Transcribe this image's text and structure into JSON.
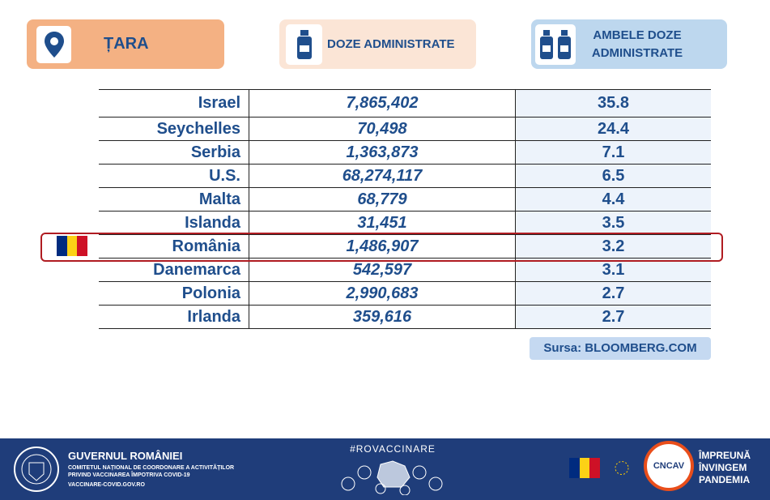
{
  "header": {
    "country": "ȚARA",
    "doses": "DOZE ADMINISTRATE",
    "both_doses": "AMBELE DOZE ADMINISTRATE"
  },
  "table": {
    "rows": [
      [
        "Israel",
        "7,865,402",
        35.8
      ],
      [
        "Seychelles",
        "70,498",
        24.4
      ],
      [
        "Serbia",
        "1,363,873",
        7.1
      ],
      [
        "U.S.",
        "68,274,117",
        6.5
      ],
      [
        "Malta",
        "68,779",
        4.4
      ],
      [
        "Islanda",
        "31,451",
        3.5
      ],
      [
        "România",
        "1,486,907",
        3.2
      ],
      [
        "Danemarca",
        "542,597",
        3.1
      ],
      [
        "Polonia",
        "2,990,683",
        2.7
      ],
      [
        "Irlanda",
        "359,616",
        2.7
      ]
    ]
  },
  "source": "Sursa: BLOOMBERG.COM",
  "footer": {
    "gov": "GUVERNUL ROMÂNIEI",
    "committee": "COMITETUL NAȚIONAL DE COORDONARE A ACTIVITĂȚILOR PRIVIND VACCINAREA ÎMPOTRIVA COVID-19",
    "site": "VACCINARE-COVID.GOV.RO",
    "hashtag": "#ROVACCINARE",
    "logo": "CNCAV",
    "slogan": "ÎMPREUNĂ ÎNVINGEM PANDEMIA"
  }
}
